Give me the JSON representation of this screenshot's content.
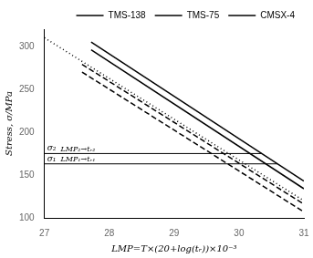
{
  "chart_data": {
    "type": "line",
    "xlabel": "LMP=T×(20+log(tᵣ))×10⁻³",
    "ylabel": "Stress, σ/MPa",
    "xlim": [
      27,
      31
    ],
    "ylim": [
      100,
      320
    ],
    "xticks": [
      27,
      28,
      29,
      30,
      31
    ],
    "yticks": [
      100,
      150,
      200,
      250,
      300
    ],
    "grid": false,
    "legend": "upper right",
    "color": "#000000",
    "series": [
      {
        "name": "TMS-138",
        "line_style": "solid",
        "lines": [
          {
            "x": [
              27.72,
              31.0
            ],
            "values": [
              305,
              143
            ]
          },
          {
            "x": [
              27.72,
              31.0
            ],
            "values": [
              296,
              134
            ]
          }
        ]
      },
      {
        "name": "TMS-75",
        "line_style": "dashed",
        "lines": [
          {
            "x": [
              27.58,
              31.0
            ],
            "values": [
              279,
              116
            ]
          },
          {
            "x": [
              27.58,
              31.0
            ],
            "values": [
              270,
              107
            ]
          }
        ]
      },
      {
        "name": "CMSX-4",
        "line_style": "dotted",
        "lines": [
          {
            "x": [
              27.0,
              31.0
            ],
            "values": [
              310,
              120
            ]
          }
        ]
      }
    ],
    "reference_lines": [
      {
        "x": [
          27.0,
          30.3520987654321
        ],
        "values": [
          175,
          175
        ],
        "label": "σ₂",
        "annotation": "LMP₂→tᵣ₂"
      },
      {
        "x": [
          27.0,
          30.595061728395063
        ],
        "values": [
          163,
          163
        ],
        "label": "σ₁",
        "annotation": "LMP₁→tᵣ₁"
      }
    ]
  }
}
